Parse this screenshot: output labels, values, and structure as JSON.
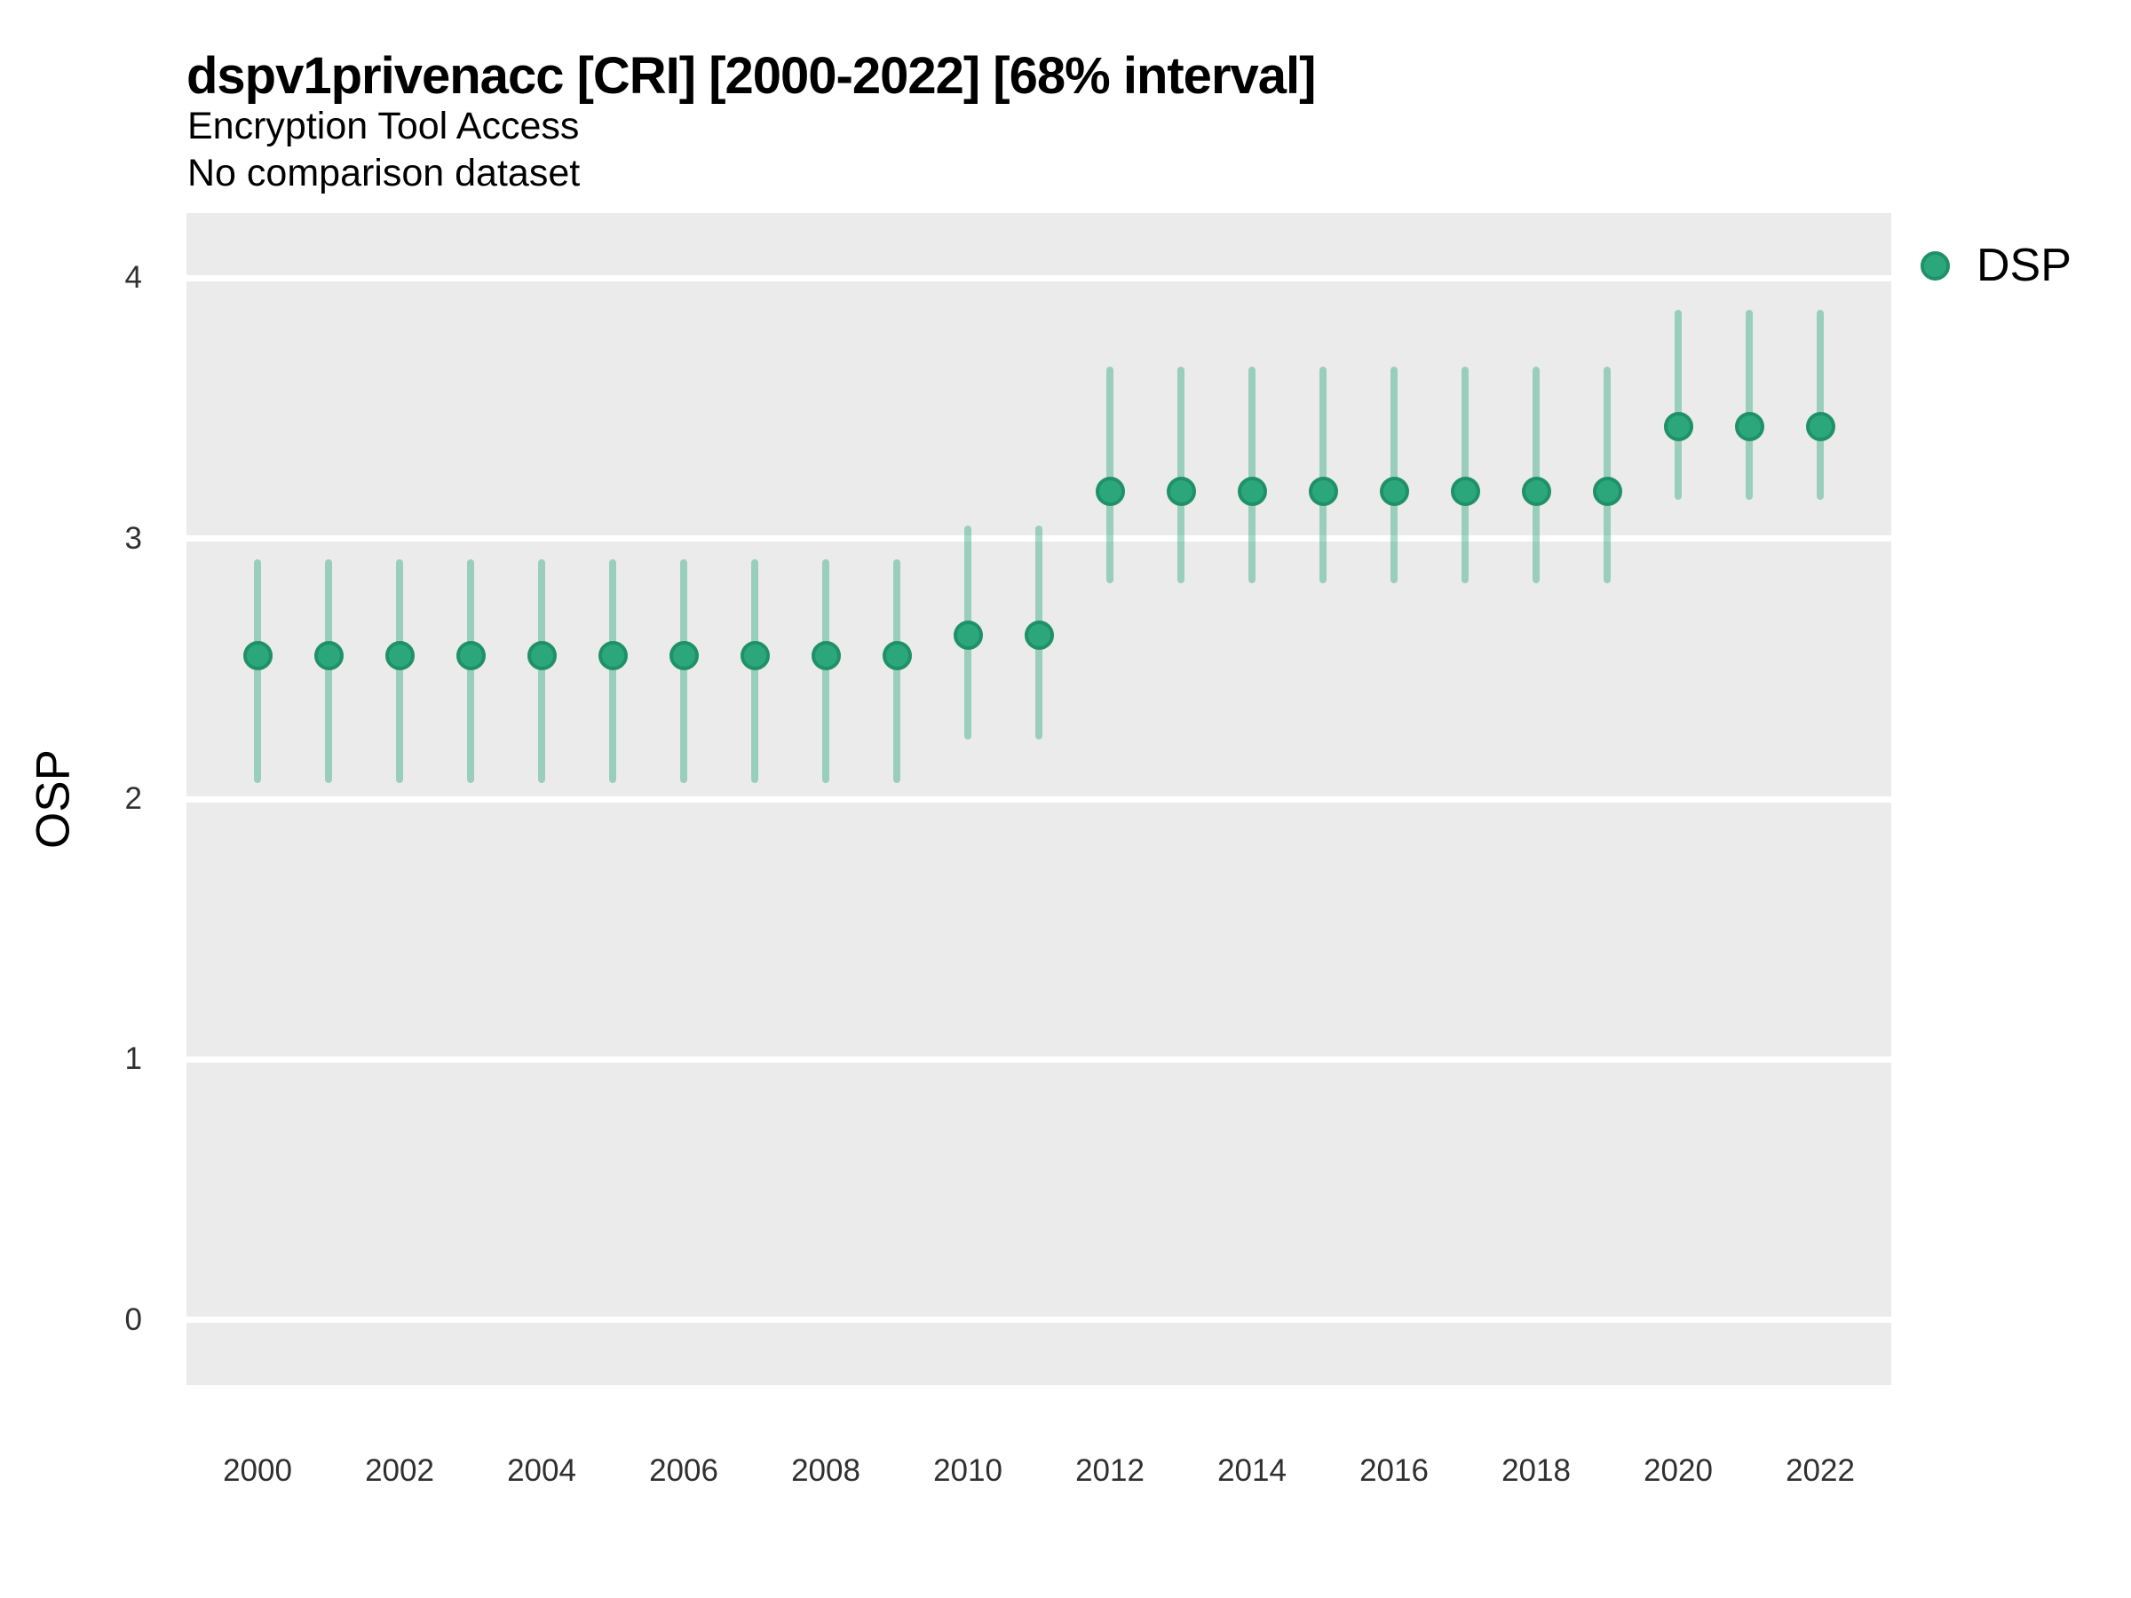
{
  "header": {
    "title": "dspv1privenacc [CRI] [2000-2022] [68% interval]",
    "subtitle_line1": "Encryption Tool Access",
    "subtitle_line2": "No comparison dataset"
  },
  "y_axis": {
    "label": "OSP",
    "tick_values": [
      0,
      1,
      2,
      3,
      4
    ],
    "tick_labels": [
      "0",
      "1",
      "2",
      "3",
      "4"
    ]
  },
  "x_axis": {
    "tick_labels": [
      "2000",
      "2002",
      "2004",
      "2006",
      "2008",
      "2010",
      "2012",
      "2014",
      "2016",
      "2018",
      "2020",
      "2022"
    ]
  },
  "legend": {
    "items": [
      {
        "label": "DSP",
        "marker": "filled-circle",
        "color": "#2ca77c"
      }
    ]
  },
  "colors": {
    "point_fill": "#2ca77c",
    "point_border": "#1f9168",
    "interval_bar": "rgba(42,167,124,0.42)",
    "panel_background": "#ebebeb",
    "gridline": "#ffffff",
    "title_text": "#000000",
    "tick_text": "#303030"
  },
  "chart_data": {
    "type": "pointrange",
    "title": "dspv1privenacc [CRI] [2000-2022] [68% interval]",
    "subtitle": [
      "Encryption Tool Access",
      "No comparison dataset"
    ],
    "interval_level": "68%",
    "xlabel": "",
    "ylabel": "OSP",
    "ylim": [
      -0.25,
      4.25
    ],
    "y_ticks": [
      0,
      1,
      2,
      3,
      4
    ],
    "x_ticks_shown": [
      2000,
      2002,
      2004,
      2006,
      2008,
      2010,
      2012,
      2014,
      2016,
      2018,
      2020,
      2022
    ],
    "grid": "horizontal-major-only",
    "legend_position": "right-top",
    "series": [
      {
        "name": "DSP",
        "x": [
          2000,
          2001,
          2002,
          2003,
          2004,
          2005,
          2006,
          2007,
          2008,
          2009,
          2010,
          2011,
          2012,
          2013,
          2014,
          2015,
          2016,
          2017,
          2018,
          2019,
          2020,
          2021,
          2022
        ],
        "y": [
          2.55,
          2.55,
          2.55,
          2.55,
          2.55,
          2.55,
          2.55,
          2.55,
          2.55,
          2.55,
          2.63,
          2.63,
          3.18,
          3.18,
          3.18,
          3.18,
          3.18,
          3.18,
          3.18,
          3.18,
          3.43,
          3.43,
          3.43
        ],
        "y_lo": [
          2.06,
          2.06,
          2.06,
          2.06,
          2.06,
          2.06,
          2.06,
          2.06,
          2.06,
          2.06,
          2.23,
          2.23,
          2.83,
          2.83,
          2.83,
          2.83,
          2.83,
          2.83,
          2.83,
          2.83,
          3.15,
          3.15,
          3.15
        ],
        "y_hi": [
          2.92,
          2.92,
          2.92,
          2.92,
          2.92,
          2.92,
          2.92,
          2.92,
          2.92,
          2.92,
          3.05,
          3.05,
          3.66,
          3.66,
          3.66,
          3.66,
          3.66,
          3.66,
          3.66,
          3.66,
          3.88,
          3.88,
          3.88
        ]
      }
    ]
  }
}
